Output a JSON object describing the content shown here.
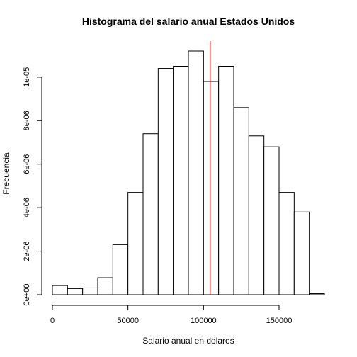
{
  "chart_data": {
    "type": "bar",
    "title": "Histograma del salario anual Estados Unidos",
    "xlabel": "Salario anual en dolares",
    "ylabel": "Frecuencia",
    "xlim": [
      0,
      180000
    ],
    "ylim": [
      0,
      1.12e-05
    ],
    "bin_width": 10000,
    "bins": [
      {
        "start": 0,
        "end": 10000,
        "value": 4.2e-07
      },
      {
        "start": 10000,
        "end": 20000,
        "value": 2.8e-07
      },
      {
        "start": 20000,
        "end": 30000,
        "value": 3.1e-07
      },
      {
        "start": 30000,
        "end": 40000,
        "value": 7.8e-07
      },
      {
        "start": 40000,
        "end": 50000,
        "value": 2.3e-06
      },
      {
        "start": 50000,
        "end": 60000,
        "value": 4.7e-06
      },
      {
        "start": 60000,
        "end": 70000,
        "value": 7.4e-06
      },
      {
        "start": 70000,
        "end": 80000,
        "value": 1.04e-05
      },
      {
        "start": 80000,
        "end": 90000,
        "value": 1.05e-05
      },
      {
        "start": 90000,
        "end": 100000,
        "value": 1.12e-05
      },
      {
        "start": 100000,
        "end": 110000,
        "value": 9.8e-06
      },
      {
        "start": 110000,
        "end": 120000,
        "value": 1.05e-05
      },
      {
        "start": 120000,
        "end": 130000,
        "value": 8.6e-06
      },
      {
        "start": 130000,
        "end": 140000,
        "value": 7.3e-06
      },
      {
        "start": 140000,
        "end": 150000,
        "value": 6.8e-06
      },
      {
        "start": 150000,
        "end": 160000,
        "value": 4.7e-06
      },
      {
        "start": 160000,
        "end": 170000,
        "value": 3.8e-06
      },
      {
        "start": 170000,
        "end": 180000,
        "value": 5e-08
      }
    ],
    "x_ticks": [
      {
        "value": 0,
        "label": "0"
      },
      {
        "value": 50000,
        "label": "50000"
      },
      {
        "value": 100000,
        "label": "100000"
      },
      {
        "value": 150000,
        "label": "150000"
      }
    ],
    "y_ticks": [
      {
        "value": 0,
        "label": "0e+00"
      },
      {
        "value": 2e-06,
        "label": "2e-06"
      },
      {
        "value": 4e-06,
        "label": "4e-06"
      },
      {
        "value": 6e-06,
        "label": "6e-06"
      },
      {
        "value": 8e-06,
        "label": "8e-06"
      },
      {
        "value": 1e-05,
        "label": "1e-05"
      }
    ],
    "reference_line": {
      "x": 104500,
      "color": "#ff0000"
    },
    "grid": false,
    "legend": "none"
  }
}
